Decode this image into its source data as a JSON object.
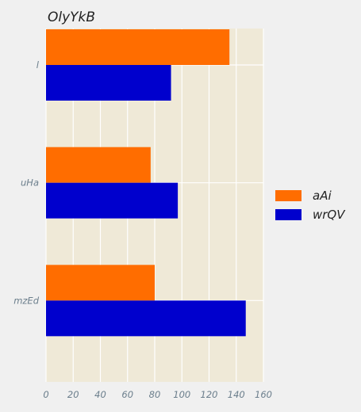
{
  "chart_data": {
    "type": "bar",
    "orientation": "horizontal",
    "title": "OlyYkB",
    "xlabel": "",
    "ylabel": "",
    "categories": [
      "l",
      "uHa",
      "mzEd"
    ],
    "series": [
      {
        "name": "aAi",
        "color": "#ff6d00",
        "values": [
          135,
          77,
          80
        ]
      },
      {
        "name": "wrQV",
        "color": "#0000cd",
        "values": [
          92,
          97,
          147
        ]
      }
    ],
    "xlim": [
      0,
      160
    ],
    "xticks": [
      0,
      20,
      40,
      60,
      80,
      100,
      120,
      140,
      160
    ],
    "grid": true,
    "legend": "right",
    "plot_background": "#efe9d7",
    "grid_color": "#ffffff"
  }
}
